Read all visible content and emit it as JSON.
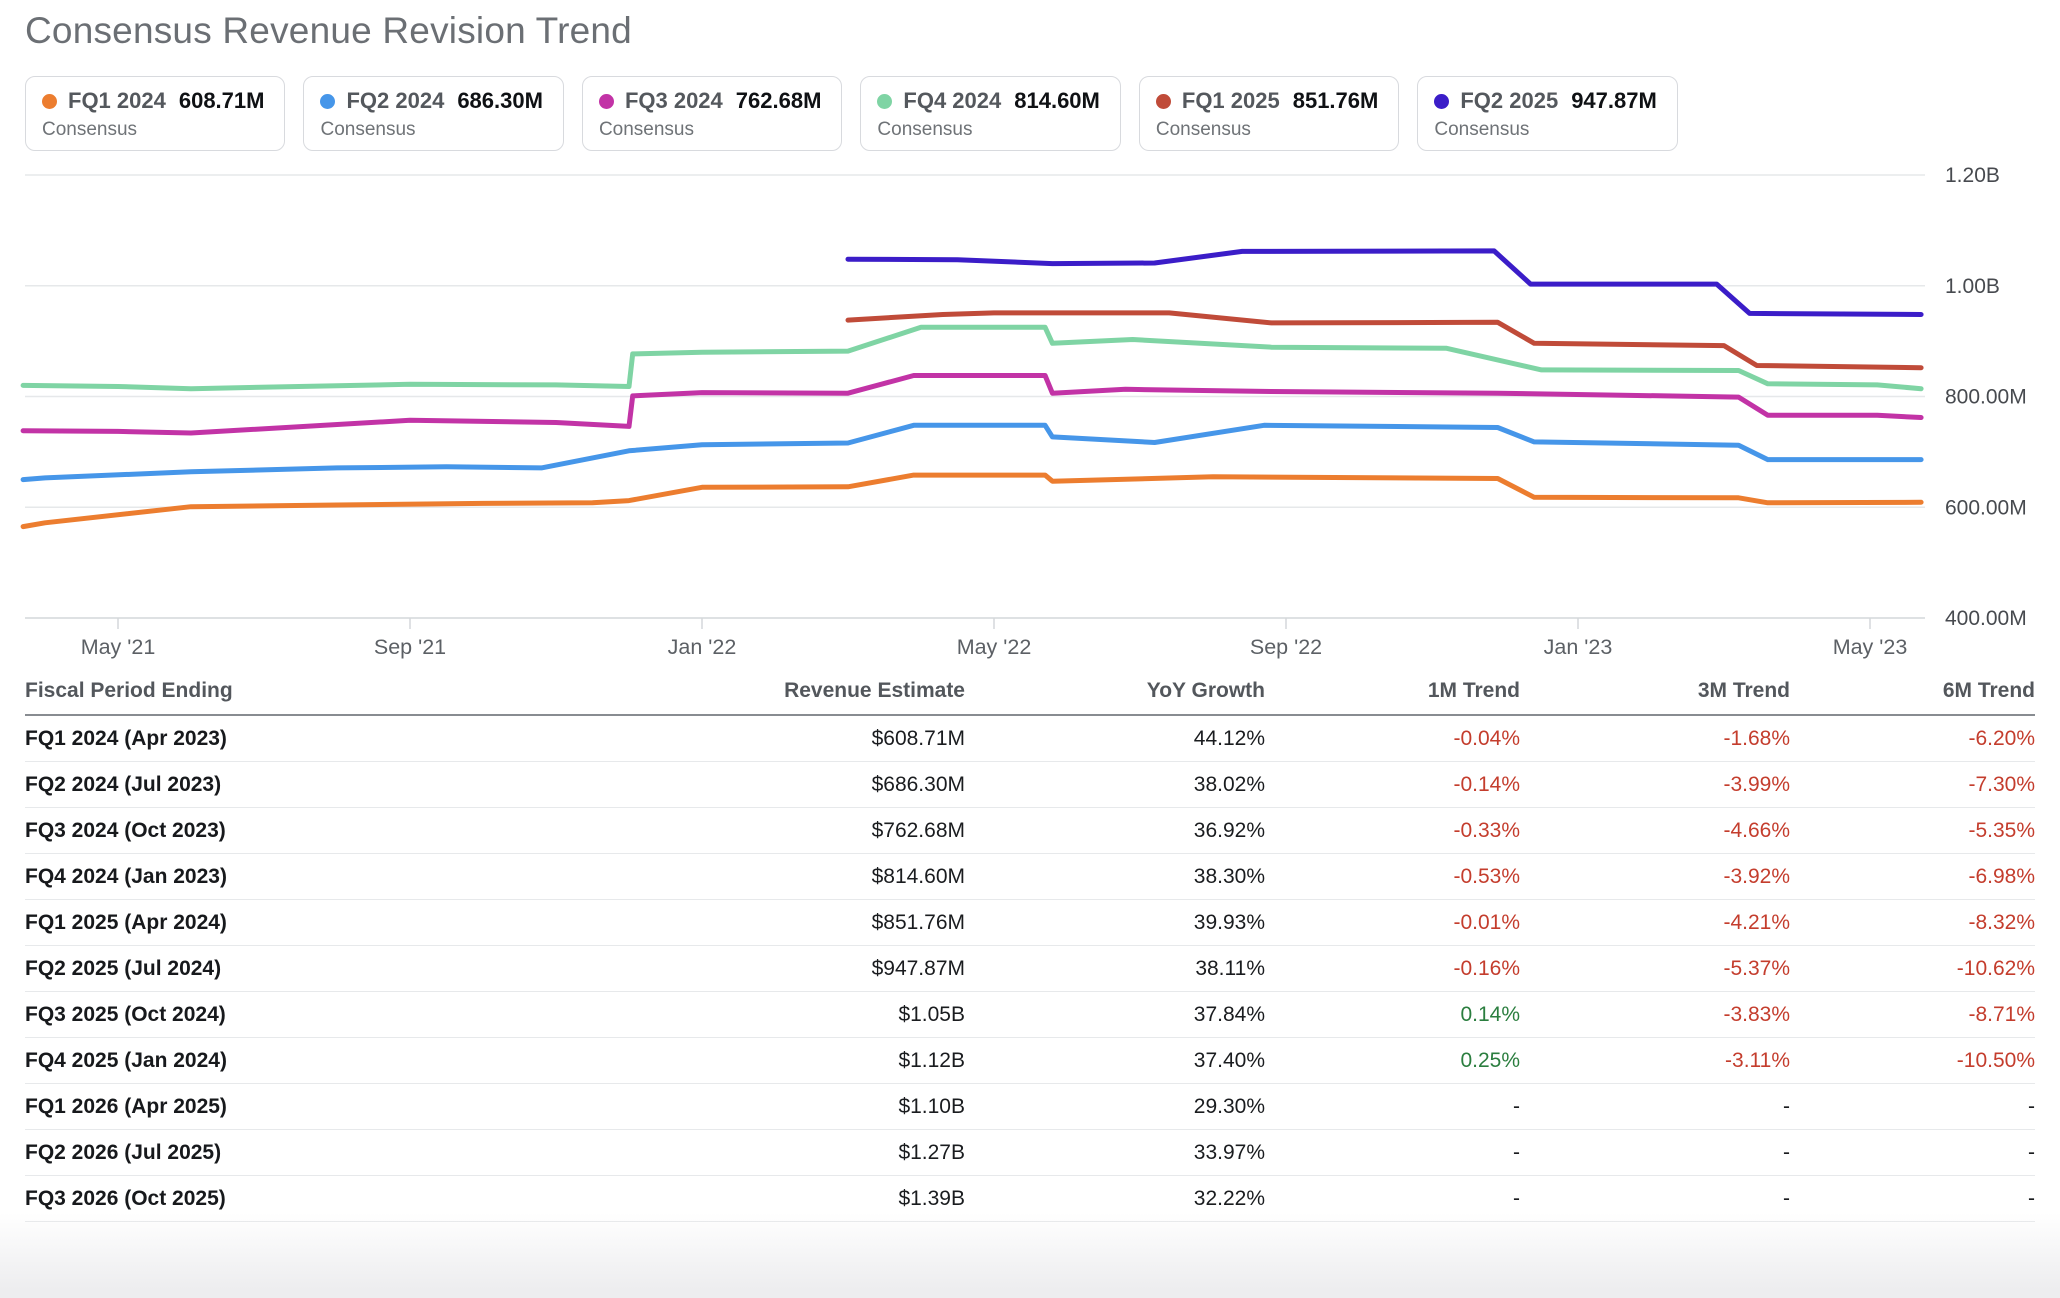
{
  "page": {
    "title": "Consensus Revenue Revision Trend"
  },
  "legend": {
    "sub_label": "Consensus",
    "items": [
      {
        "quarter": "FQ1 2024",
        "value": "608.71M",
        "color": "#EC7D2F"
      },
      {
        "quarter": "FQ2 2024",
        "value": "686.30M",
        "color": "#4696E9"
      },
      {
        "quarter": "FQ3 2024",
        "value": "762.68M",
        "color": "#C233A6"
      },
      {
        "quarter": "FQ4 2024",
        "value": "814.60M",
        "color": "#7FD4A4"
      },
      {
        "quarter": "FQ1 2025",
        "value": "851.76M",
        "color": "#C04B39"
      },
      {
        "quarter": "FQ2 2025",
        "value": "947.87M",
        "color": "#3B1DC8"
      }
    ]
  },
  "chart_data": {
    "type": "line",
    "title": "Consensus Revenue Revision Trend",
    "unit": "revenue estimate, USD; month_index 0 = Apr 2021",
    "grid": true,
    "legend_position": "top",
    "ylim": [
      400,
      1200
    ],
    "y_axis": {
      "gridlines": [
        {
          "value": 1200,
          "label": "1.20B"
        },
        {
          "value": 1000,
          "label": "1.00B"
        },
        {
          "value": 800,
          "label": "800.00M"
        },
        {
          "value": 600,
          "label": "600.00M"
        },
        {
          "value": 400,
          "label": "400.00M"
        }
      ]
    },
    "x_axis": {
      "ticks": [
        {
          "label": "May '21",
          "month_index": 1
        },
        {
          "label": "Sep '21",
          "month_index": 5
        },
        {
          "label": "Jan '22",
          "month_index": 9
        },
        {
          "label": "May '22",
          "month_index": 13
        },
        {
          "label": "Sep '22",
          "month_index": 17
        },
        {
          "label": "Jan '23",
          "month_index": 21
        },
        {
          "label": "May '23",
          "month_index": 25
        }
      ]
    },
    "series": [
      {
        "name": "FQ1 2024 Consensus",
        "color": "#EC7D2F",
        "current": "608.71M",
        "points": [
          [
            -0.3,
            565
          ],
          [
            0,
            572
          ],
          [
            2,
            601
          ],
          [
            4,
            604
          ],
          [
            6,
            607
          ],
          [
            7.5,
            608
          ],
          [
            8,
            612
          ],
          [
            9,
            636
          ],
          [
            11,
            637
          ],
          [
            11.9,
            658
          ],
          [
            13.7,
            658
          ],
          [
            13.8,
            647
          ],
          [
            16,
            655
          ],
          [
            19.9,
            652
          ],
          [
            20.4,
            618
          ],
          [
            23.2,
            617
          ],
          [
            23.6,
            608
          ],
          [
            25.7,
            609
          ]
        ]
      },
      {
        "name": "FQ2 2024 Consensus",
        "color": "#4696E9",
        "current": "686.30M",
        "points": [
          [
            -0.3,
            650
          ],
          [
            0,
            653
          ],
          [
            2,
            664
          ],
          [
            4,
            671
          ],
          [
            5.5,
            673
          ],
          [
            6.8,
            671
          ],
          [
            8,
            702
          ],
          [
            9,
            713
          ],
          [
            11,
            716
          ],
          [
            11.9,
            748
          ],
          [
            13.7,
            748
          ],
          [
            13.8,
            727
          ],
          [
            15.2,
            717
          ],
          [
            16.7,
            748
          ],
          [
            19.9,
            744
          ],
          [
            20.4,
            718
          ],
          [
            23.2,
            712
          ],
          [
            23.6,
            686
          ],
          [
            25.7,
            686
          ]
        ]
      },
      {
        "name": "FQ3 2024 Consensus",
        "color": "#C233A6",
        "current": "762.68M",
        "points": [
          [
            -0.3,
            738
          ],
          [
            1,
            737
          ],
          [
            2,
            734
          ],
          [
            5,
            757
          ],
          [
            7,
            753
          ],
          [
            8,
            746
          ],
          [
            8.05,
            801
          ],
          [
            9,
            807
          ],
          [
            11,
            806
          ],
          [
            11.9,
            838
          ],
          [
            13.7,
            838
          ],
          [
            13.8,
            806
          ],
          [
            14.8,
            813
          ],
          [
            16.8,
            809
          ],
          [
            19.9,
            806
          ],
          [
            23.2,
            799
          ],
          [
            23.6,
            766
          ],
          [
            25.1,
            766
          ],
          [
            25.7,
            762
          ]
        ]
      },
      {
        "name": "FQ4 2024 Consensus",
        "color": "#7FD4A4",
        "current": "814.60M",
        "points": [
          [
            -0.3,
            820
          ],
          [
            1,
            818
          ],
          [
            2,
            814
          ],
          [
            5,
            822
          ],
          [
            7,
            821
          ],
          [
            8,
            818
          ],
          [
            8.05,
            877
          ],
          [
            9,
            880
          ],
          [
            11,
            882
          ],
          [
            12,
            925
          ],
          [
            13.7,
            925
          ],
          [
            13.8,
            896
          ],
          [
            14.9,
            903
          ],
          [
            16.8,
            889
          ],
          [
            19.2,
            887
          ],
          [
            20.5,
            848
          ],
          [
            23.2,
            847
          ],
          [
            23.6,
            823
          ],
          [
            25.1,
            821
          ],
          [
            25.7,
            814
          ]
        ]
      },
      {
        "name": "FQ1 2025 Consensus",
        "color": "#C04B39",
        "current": "851.76M",
        "points": [
          [
            11,
            938
          ],
          [
            12.3,
            948
          ],
          [
            13,
            951
          ],
          [
            15.4,
            951
          ],
          [
            16.8,
            933
          ],
          [
            19.9,
            934
          ],
          [
            20.4,
            896
          ],
          [
            23.0,
            892
          ],
          [
            23.45,
            856
          ],
          [
            25.7,
            852
          ]
        ]
      },
      {
        "name": "FQ2 2025 Consensus",
        "color": "#3B1DC8",
        "current": "947.87M",
        "points": [
          [
            11,
            1048
          ],
          [
            12.5,
            1047
          ],
          [
            13.8,
            1040
          ],
          [
            15.2,
            1041
          ],
          [
            16.4,
            1062
          ],
          [
            19.85,
            1063
          ],
          [
            20.35,
            1003
          ],
          [
            22.9,
            1003
          ],
          [
            23.35,
            950
          ],
          [
            25.7,
            948
          ]
        ]
      }
    ]
  },
  "table": {
    "headers": [
      "Fiscal Period Ending",
      "Revenue Estimate",
      "YoY Growth",
      "1M Trend",
      "3M Trend",
      "6M Trend"
    ],
    "rows": [
      [
        "FQ1 2024 (Apr 2023)",
        "$608.71M",
        "44.12%",
        "-0.04%",
        "-1.68%",
        "-6.20%"
      ],
      [
        "FQ2 2024 (Jul 2023)",
        "$686.30M",
        "38.02%",
        "-0.14%",
        "-3.99%",
        "-7.30%"
      ],
      [
        "FQ3 2024 (Oct 2023)",
        "$762.68M",
        "36.92%",
        "-0.33%",
        "-4.66%",
        "-5.35%"
      ],
      [
        "FQ4 2024 (Jan 2023)",
        "$814.60M",
        "38.30%",
        "-0.53%",
        "-3.92%",
        "-6.98%"
      ],
      [
        "FQ1 2025 (Apr 2024)",
        "$851.76M",
        "39.93%",
        "-0.01%",
        "-4.21%",
        "-8.32%"
      ],
      [
        "FQ2 2025 (Jul 2024)",
        "$947.87M",
        "38.11%",
        "-0.16%",
        "-5.37%",
        "-10.62%"
      ],
      [
        "FQ3 2025 (Oct 2024)",
        "$1.05B",
        "37.84%",
        "0.14%",
        "-3.83%",
        "-8.71%"
      ],
      [
        "FQ4 2025 (Jan 2024)",
        "$1.12B",
        "37.40%",
        "0.25%",
        "-3.11%",
        "-10.50%"
      ],
      [
        "FQ1 2026 (Apr 2025)",
        "$1.10B",
        "29.30%",
        "-",
        "-",
        "-"
      ],
      [
        "FQ2 2026 (Jul 2025)",
        "$1.27B",
        "33.97%",
        "-",
        "-",
        "-"
      ],
      [
        "FQ3 2026 (Oct 2025)",
        "$1.39B",
        "32.22%",
        "-",
        "-",
        "-"
      ]
    ],
    "colors": {
      "negative": "#c43d2d",
      "positive": "#2b7e3f"
    }
  }
}
